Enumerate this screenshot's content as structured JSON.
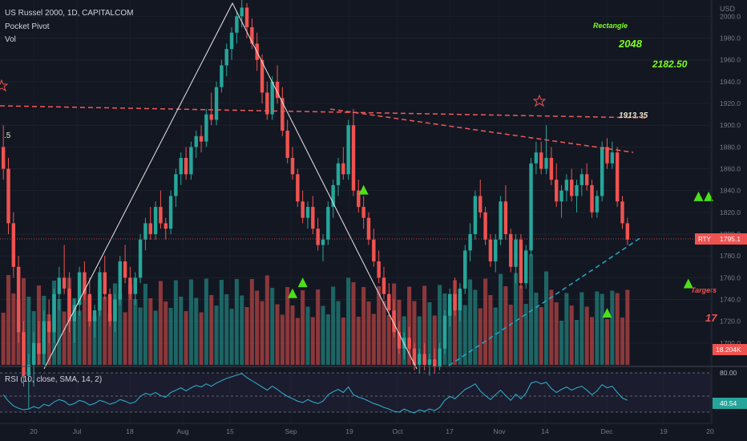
{
  "header": {
    "symbol_line": "US Russel 2000, 1D, CAPITALCOM",
    "indicator_1": "Pocket Pivot",
    "indicator_2": "Vol"
  },
  "colors": {
    "background": "#131722",
    "up": "#26a69a",
    "down": "#ef5350",
    "signal": "#4cdf1a",
    "rsi_line": "#2ea8c6",
    "annotation_green": "#7cff1e",
    "annotation_white": "#e8e3c8",
    "trendline_red": "#f05a5a",
    "trendline_cyan": "#24a8c8"
  },
  "annotations": {
    "rectangle_label": "Rectangle",
    "target_1": "2048",
    "target_2": "2182.50",
    "neckline_value": "1913.35",
    "targets_label": "Targets",
    "targets_value": "17",
    "left_marker": ".5"
  },
  "chart_data": {
    "type": "candlestick",
    "price_axis": {
      "unit_label": "USD",
      "ticks": [
        "2000.0",
        "1980.0",
        "1960.0",
        "1940.0",
        "1920.0",
        "1900.0",
        "1880.0",
        "1860.0",
        "1840.0",
        "1820.0",
        "1800.0",
        "1780.0",
        "1760.0",
        "1740.0",
        "1720.0",
        "1700.0"
      ],
      "range": [
        1680,
        2015
      ]
    },
    "time_axis": {
      "ticks": [
        "20",
        "Jul",
        "18",
        "Aug",
        "15",
        "Sep",
        "19",
        "Oct",
        "17",
        "Nov",
        "14",
        "Dec",
        "19",
        "20"
      ]
    },
    "last_price": {
      "symbol": "RTY",
      "value": "1795.1"
    },
    "last_volume": "18.204K",
    "candles": [
      {
        "o": 1880,
        "h": 1900,
        "l": 1850,
        "c": 1860
      },
      {
        "o": 1860,
        "h": 1870,
        "l": 1800,
        "c": 1810
      },
      {
        "o": 1810,
        "h": 1820,
        "l": 1760,
        "c": 1770
      },
      {
        "o": 1770,
        "h": 1780,
        "l": 1700,
        "c": 1710
      },
      {
        "o": 1710,
        "h": 1720,
        "l": 1660,
        "c": 1670
      },
      {
        "o": 1670,
        "h": 1690,
        "l": 1640,
        "c": 1680
      },
      {
        "o": 1680,
        "h": 1710,
        "l": 1660,
        "c": 1700
      },
      {
        "o": 1700,
        "h": 1720,
        "l": 1680,
        "c": 1690
      },
      {
        "o": 1690,
        "h": 1730,
        "l": 1680,
        "c": 1720
      },
      {
        "o": 1720,
        "h": 1740,
        "l": 1700,
        "c": 1710
      },
      {
        "o": 1710,
        "h": 1750,
        "l": 1700,
        "c": 1745
      },
      {
        "o": 1745,
        "h": 1770,
        "l": 1730,
        "c": 1760
      },
      {
        "o": 1760,
        "h": 1790,
        "l": 1745,
        "c": 1750
      },
      {
        "o": 1750,
        "h": 1765,
        "l": 1710,
        "c": 1720
      },
      {
        "o": 1720,
        "h": 1740,
        "l": 1700,
        "c": 1735
      },
      {
        "o": 1735,
        "h": 1770,
        "l": 1725,
        "c": 1765
      },
      {
        "o": 1765,
        "h": 1775,
        "l": 1740,
        "c": 1745
      },
      {
        "o": 1745,
        "h": 1760,
        "l": 1715,
        "c": 1720
      },
      {
        "o": 1720,
        "h": 1735,
        "l": 1705,
        "c": 1730
      },
      {
        "o": 1730,
        "h": 1770,
        "l": 1725,
        "c": 1765
      },
      {
        "o": 1765,
        "h": 1780,
        "l": 1740,
        "c": 1745
      },
      {
        "o": 1745,
        "h": 1750,
        "l": 1715,
        "c": 1720
      },
      {
        "o": 1720,
        "h": 1745,
        "l": 1710,
        "c": 1740
      },
      {
        "o": 1740,
        "h": 1780,
        "l": 1735,
        "c": 1775
      },
      {
        "o": 1775,
        "h": 1790,
        "l": 1755,
        "c": 1760
      },
      {
        "o": 1760,
        "h": 1770,
        "l": 1740,
        "c": 1745
      },
      {
        "o": 1745,
        "h": 1765,
        "l": 1735,
        "c": 1760
      },
      {
        "o": 1760,
        "h": 1800,
        "l": 1755,
        "c": 1795
      },
      {
        "o": 1795,
        "h": 1815,
        "l": 1785,
        "c": 1810
      },
      {
        "o": 1810,
        "h": 1825,
        "l": 1795,
        "c": 1800
      },
      {
        "o": 1800,
        "h": 1830,
        "l": 1795,
        "c": 1825
      },
      {
        "o": 1825,
        "h": 1840,
        "l": 1805,
        "c": 1810
      },
      {
        "o": 1810,
        "h": 1815,
        "l": 1795,
        "c": 1805
      },
      {
        "o": 1805,
        "h": 1840,
        "l": 1800,
        "c": 1835
      },
      {
        "o": 1835,
        "h": 1860,
        "l": 1825,
        "c": 1855
      },
      {
        "o": 1855,
        "h": 1875,
        "l": 1845,
        "c": 1870
      },
      {
        "o": 1870,
        "h": 1880,
        "l": 1850,
        "c": 1855
      },
      {
        "o": 1855,
        "h": 1885,
        "l": 1850,
        "c": 1880
      },
      {
        "o": 1880,
        "h": 1895,
        "l": 1870,
        "c": 1890
      },
      {
        "o": 1890,
        "h": 1900,
        "l": 1875,
        "c": 1885
      },
      {
        "o": 1885,
        "h": 1915,
        "l": 1880,
        "c": 1910
      },
      {
        "o": 1910,
        "h": 1930,
        "l": 1900,
        "c": 1905
      },
      {
        "o": 1905,
        "h": 1940,
        "l": 1900,
        "c": 1935
      },
      {
        "o": 1935,
        "h": 1960,
        "l": 1930,
        "c": 1955
      },
      {
        "o": 1955,
        "h": 1975,
        "l": 1945,
        "c": 1970
      },
      {
        "o": 1970,
        "h": 1990,
        "l": 1960,
        "c": 1985
      },
      {
        "o": 1985,
        "h": 2005,
        "l": 1975,
        "c": 2000
      },
      {
        "o": 2000,
        "h": 2015,
        "l": 1990,
        "c": 2008
      },
      {
        "o": 2008,
        "h": 2012,
        "l": 1980,
        "c": 1990
      },
      {
        "o": 1990,
        "h": 1998,
        "l": 1970,
        "c": 1975
      },
      {
        "o": 1975,
        "h": 1985,
        "l": 1950,
        "c": 1960
      },
      {
        "o": 1960,
        "h": 1965,
        "l": 1920,
        "c": 1930
      },
      {
        "o": 1930,
        "h": 1940,
        "l": 1905,
        "c": 1910
      },
      {
        "o": 1910,
        "h": 1945,
        "l": 1905,
        "c": 1940
      },
      {
        "o": 1940,
        "h": 1955,
        "l": 1920,
        "c": 1925
      },
      {
        "o": 1925,
        "h": 1935,
        "l": 1890,
        "c": 1895
      },
      {
        "o": 1895,
        "h": 1905,
        "l": 1865,
        "c": 1870
      },
      {
        "o": 1870,
        "h": 1880,
        "l": 1850,
        "c": 1855
      },
      {
        "o": 1855,
        "h": 1860,
        "l": 1825,
        "c": 1830
      },
      {
        "o": 1830,
        "h": 1840,
        "l": 1810,
        "c": 1815
      },
      {
        "o": 1815,
        "h": 1830,
        "l": 1805,
        "c": 1825
      },
      {
        "o": 1825,
        "h": 1835,
        "l": 1800,
        "c": 1805
      },
      {
        "o": 1805,
        "h": 1815,
        "l": 1785,
        "c": 1790
      },
      {
        "o": 1790,
        "h": 1800,
        "l": 1775,
        "c": 1795
      },
      {
        "o": 1795,
        "h": 1830,
        "l": 1790,
        "c": 1825
      },
      {
        "o": 1825,
        "h": 1850,
        "l": 1815,
        "c": 1845
      },
      {
        "o": 1845,
        "h": 1870,
        "l": 1835,
        "c": 1865
      },
      {
        "o": 1865,
        "h": 1880,
        "l": 1850,
        "c": 1855
      },
      {
        "o": 1855,
        "h": 1905,
        "l": 1850,
        "c": 1900
      },
      {
        "o": 1900,
        "h": 1915,
        "l": 1835,
        "c": 1840
      },
      {
        "o": 1840,
        "h": 1850,
        "l": 1820,
        "c": 1825
      },
      {
        "o": 1825,
        "h": 1835,
        "l": 1805,
        "c": 1815
      },
      {
        "o": 1815,
        "h": 1820,
        "l": 1790,
        "c": 1795
      },
      {
        "o": 1795,
        "h": 1805,
        "l": 1770,
        "c": 1775
      },
      {
        "o": 1775,
        "h": 1785,
        "l": 1755,
        "c": 1760
      },
      {
        "o": 1760,
        "h": 1770,
        "l": 1740,
        "c": 1745
      },
      {
        "o": 1745,
        "h": 1755,
        "l": 1725,
        "c": 1730
      },
      {
        "o": 1730,
        "h": 1740,
        "l": 1705,
        "c": 1710
      },
      {
        "o": 1710,
        "h": 1720,
        "l": 1690,
        "c": 1695
      },
      {
        "o": 1695,
        "h": 1710,
        "l": 1685,
        "c": 1705
      },
      {
        "o": 1705,
        "h": 1715,
        "l": 1690,
        "c": 1695
      },
      {
        "o": 1695,
        "h": 1700,
        "l": 1675,
        "c": 1680
      },
      {
        "o": 1680,
        "h": 1695,
        "l": 1672,
        "c": 1690
      },
      {
        "o": 1690,
        "h": 1700,
        "l": 1675,
        "c": 1680
      },
      {
        "o": 1680,
        "h": 1690,
        "l": 1670,
        "c": 1685
      },
      {
        "o": 1685,
        "h": 1695,
        "l": 1672,
        "c": 1678
      },
      {
        "o": 1678,
        "h": 1700,
        "l": 1675,
        "c": 1695
      },
      {
        "o": 1695,
        "h": 1730,
        "l": 1690,
        "c": 1725
      },
      {
        "o": 1725,
        "h": 1750,
        "l": 1715,
        "c": 1745
      },
      {
        "o": 1745,
        "h": 1760,
        "l": 1725,
        "c": 1730
      },
      {
        "o": 1730,
        "h": 1755,
        "l": 1720,
        "c": 1750
      },
      {
        "o": 1750,
        "h": 1790,
        "l": 1745,
        "c": 1785
      },
      {
        "o": 1785,
        "h": 1810,
        "l": 1775,
        "c": 1800
      },
      {
        "o": 1800,
        "h": 1840,
        "l": 1795,
        "c": 1835
      },
      {
        "o": 1835,
        "h": 1850,
        "l": 1815,
        "c": 1820
      },
      {
        "o": 1820,
        "h": 1825,
        "l": 1790,
        "c": 1795
      },
      {
        "o": 1795,
        "h": 1800,
        "l": 1770,
        "c": 1775
      },
      {
        "o": 1775,
        "h": 1800,
        "l": 1765,
        "c": 1795
      },
      {
        "o": 1795,
        "h": 1835,
        "l": 1790,
        "c": 1830
      },
      {
        "o": 1830,
        "h": 1845,
        "l": 1795,
        "c": 1800
      },
      {
        "o": 1800,
        "h": 1805,
        "l": 1765,
        "c": 1770
      },
      {
        "o": 1770,
        "h": 1800,
        "l": 1755,
        "c": 1795
      },
      {
        "o": 1795,
        "h": 1800,
        "l": 1750,
        "c": 1755
      },
      {
        "o": 1755,
        "h": 1790,
        "l": 1750,
        "c": 1785
      },
      {
        "o": 1785,
        "h": 1870,
        "l": 1780,
        "c": 1865
      },
      {
        "o": 1865,
        "h": 1885,
        "l": 1855,
        "c": 1875
      },
      {
        "o": 1875,
        "h": 1885,
        "l": 1855,
        "c": 1860
      },
      {
        "o": 1860,
        "h": 1900,
        "l": 1855,
        "c": 1870
      },
      {
        "o": 1870,
        "h": 1880,
        "l": 1845,
        "c": 1850
      },
      {
        "o": 1850,
        "h": 1865,
        "l": 1825,
        "c": 1830
      },
      {
        "o": 1830,
        "h": 1845,
        "l": 1815,
        "c": 1840
      },
      {
        "o": 1840,
        "h": 1855,
        "l": 1830,
        "c": 1850
      },
      {
        "o": 1850,
        "h": 1860,
        "l": 1830,
        "c": 1835
      },
      {
        "o": 1835,
        "h": 1850,
        "l": 1820,
        "c": 1845
      },
      {
        "o": 1845,
        "h": 1860,
        "l": 1835,
        "c": 1855
      },
      {
        "o": 1855,
        "h": 1865,
        "l": 1840,
        "c": 1845
      },
      {
        "o": 1845,
        "h": 1850,
        "l": 1815,
        "c": 1820
      },
      {
        "o": 1820,
        "h": 1840,
        "l": 1815,
        "c": 1835
      },
      {
        "o": 1835,
        "h": 1885,
        "l": 1830,
        "c": 1880
      },
      {
        "o": 1880,
        "h": 1888,
        "l": 1860,
        "c": 1865
      },
      {
        "o": 1865,
        "h": 1885,
        "l": 1860,
        "c": 1875
      },
      {
        "o": 1875,
        "h": 1880,
        "l": 1825,
        "c": 1830
      },
      {
        "o": 1830,
        "h": 1835,
        "l": 1805,
        "c": 1810
      },
      {
        "o": 1810,
        "h": 1815,
        "l": 1790,
        "c": 1795
      }
    ],
    "signals": [
      {
        "index": 57,
        "price": 1745
      },
      {
        "index": 59,
        "price": 1755
      },
      {
        "index": 71,
        "price": 1840
      },
      {
        "index": 119,
        "price": 1727
      },
      {
        "index": 135,
        "price": 1754
      },
      {
        "index": 137,
        "price": 1834
      },
      {
        "index": 139,
        "price": 1834
      }
    ],
    "rsi": {
      "label": "RSI (10, close, SMA, 14, 2)",
      "ticks": [
        "80.00",
        "40.54"
      ],
      "levels": [
        80,
        50,
        30
      ],
      "range": [
        25,
        85
      ],
      "value": 40.54,
      "values": [
        52,
        44,
        38,
        35,
        33,
        34,
        37,
        35,
        40,
        38,
        43,
        46,
        44,
        39,
        41,
        45,
        43,
        39,
        41,
        45,
        43,
        40,
        42,
        46,
        44,
        41,
        43,
        50,
        54,
        52,
        55,
        51,
        49,
        55,
        58,
        61,
        57,
        61,
        64,
        62,
        66,
        63,
        67,
        70,
        73,
        75,
        77,
        79,
        74,
        70,
        66,
        62,
        58,
        63,
        59,
        54,
        50,
        47,
        44,
        42,
        46,
        43,
        41,
        44,
        52,
        56,
        59,
        55,
        62,
        52,
        49,
        47,
        44,
        41,
        39,
        36,
        34,
        31,
        30,
        34,
        31,
        29,
        33,
        31,
        34,
        32,
        36,
        45,
        50,
        47,
        53,
        59,
        62,
        66,
        57,
        51,
        46,
        52,
        58,
        51,
        45,
        53,
        47,
        54,
        67,
        69,
        66,
        68,
        60,
        55,
        59,
        62,
        58,
        61,
        63,
        58,
        52,
        57,
        65,
        61,
        63,
        55,
        48,
        45
      ]
    }
  }
}
